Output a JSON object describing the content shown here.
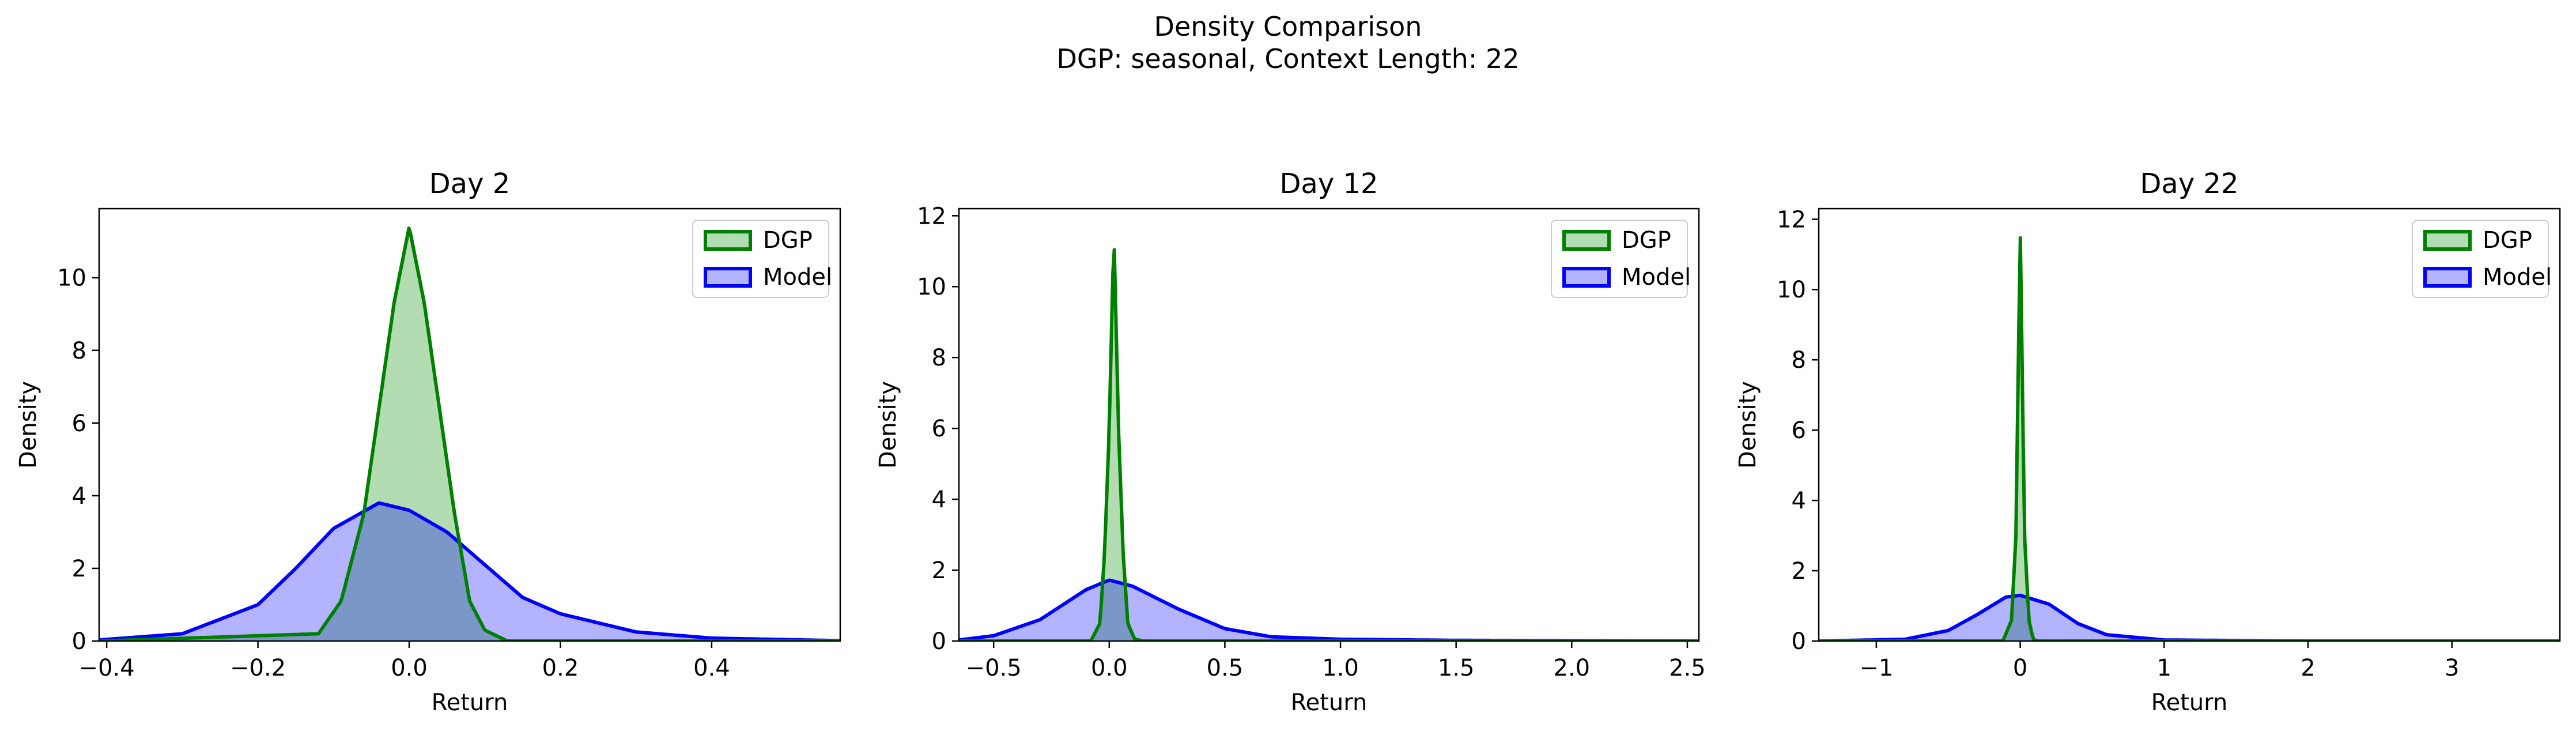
{
  "figure": {
    "title_line1": "Density Comparison",
    "title_line2": "DGP: seasonal, Context Length: 22"
  },
  "colors": {
    "dgp_line": "#008000",
    "dgp_fill": "#b3dcb3",
    "model_line": "#0000ff",
    "model_fill": "#b3b3ff",
    "overlap_fill": "#7b97c8"
  },
  "chart_data": [
    {
      "type": "area",
      "title": "Day 2",
      "xlabel": "Return",
      "ylabel": "Density",
      "xlim": [
        -0.41,
        0.57
      ],
      "ylim": [
        0,
        11.9
      ],
      "xticks": [
        -0.4,
        -0.2,
        0.0,
        0.2,
        0.4
      ],
      "xtick_labels": [
        "−0.4",
        "−0.2",
        "0.0",
        "0.2",
        "0.4"
      ],
      "yticks": [
        0,
        2,
        4,
        6,
        8,
        10
      ],
      "ytick_labels": [
        "0",
        "2",
        "4",
        "6",
        "8",
        "10"
      ],
      "legend": "top-right",
      "series": [
        {
          "name": "DGP",
          "x": [
            -0.41,
            -0.12,
            -0.09,
            -0.06,
            -0.04,
            -0.02,
            0.0,
            0.02,
            0.04,
            0.06,
            0.08,
            0.1,
            0.13,
            0.57
          ],
          "y": [
            0.0,
            0.2,
            1.1,
            3.5,
            6.4,
            9.3,
            11.4,
            9.3,
            6.4,
            3.5,
            1.1,
            0.3,
            0.0,
            0.0
          ]
        },
        {
          "name": "Model",
          "x": [
            -0.41,
            -0.3,
            -0.2,
            -0.15,
            -0.1,
            -0.04,
            0.0,
            0.05,
            0.1,
            0.15,
            0.2,
            0.3,
            0.4,
            0.57
          ],
          "y": [
            0.03,
            0.2,
            1.0,
            2.0,
            3.1,
            3.8,
            3.6,
            3.0,
            2.1,
            1.2,
            0.75,
            0.25,
            0.08,
            0.01
          ]
        }
      ]
    },
    {
      "type": "area",
      "title": "Day 12",
      "xlabel": "Return",
      "ylabel": "Density",
      "xlim": [
        -0.65,
        2.55
      ],
      "ylim": [
        0,
        12.2
      ],
      "xticks": [
        -0.5,
        0.0,
        0.5,
        1.0,
        1.5,
        2.0,
        2.5
      ],
      "xtick_labels": [
        "−0.5",
        "0.0",
        "0.5",
        "1.0",
        "1.5",
        "2.0",
        "2.5"
      ],
      "yticks": [
        0,
        2,
        4,
        6,
        8,
        10,
        12
      ],
      "ytick_labels": [
        "0",
        "2",
        "4",
        "6",
        "8",
        "10",
        "12"
      ],
      "legend": "top-right",
      "series": [
        {
          "name": "DGP",
          "x": [
            -0.65,
            -0.08,
            -0.04,
            -0.02,
            0.0,
            0.02,
            0.04,
            0.06,
            0.08,
            0.11,
            0.15,
            2.55
          ],
          "y": [
            0.0,
            0.0,
            0.5,
            2.5,
            6.0,
            11.6,
            6.0,
            2.5,
            0.5,
            0.05,
            0.0,
            0.0
          ]
        },
        {
          "name": "Model",
          "x": [
            -0.65,
            -0.5,
            -0.3,
            -0.1,
            0.0,
            0.1,
            0.3,
            0.5,
            0.7,
            1.0,
            1.5,
            2.0,
            2.55
          ],
          "y": [
            0.03,
            0.15,
            0.6,
            1.45,
            1.72,
            1.55,
            0.9,
            0.35,
            0.12,
            0.05,
            0.02,
            0.01,
            0.0
          ]
        }
      ]
    },
    {
      "type": "area",
      "title": "Day 22",
      "xlabel": "Return",
      "ylabel": "Density",
      "xlim": [
        -1.4,
        3.75
      ],
      "ylim": [
        0,
        12.3
      ],
      "xticks": [
        -1,
        0,
        1,
        2,
        3
      ],
      "xtick_labels": [
        "−1",
        "0",
        "1",
        "2",
        "3"
      ],
      "yticks": [
        0,
        2,
        4,
        6,
        8,
        10,
        12
      ],
      "ytick_labels": [
        "0",
        "2",
        "4",
        "6",
        "8",
        "10",
        "12"
      ],
      "legend": "top-right",
      "series": [
        {
          "name": "DGP",
          "x": [
            -1.4,
            -0.12,
            -0.06,
            -0.03,
            0.0,
            0.03,
            0.06,
            0.09,
            0.12,
            3.75
          ],
          "y": [
            0.0,
            0.0,
            0.6,
            3.0,
            11.7,
            3.0,
            0.6,
            0.05,
            0.0,
            0.0
          ]
        },
        {
          "name": "Model",
          "x": [
            -1.4,
            -0.8,
            -0.5,
            -0.3,
            -0.1,
            0.0,
            0.2,
            0.4,
            0.6,
            1.0,
            2.0,
            3.75
          ],
          "y": [
            0.0,
            0.05,
            0.3,
            0.75,
            1.25,
            1.3,
            1.05,
            0.5,
            0.18,
            0.03,
            0.0,
            0.0
          ]
        }
      ]
    }
  ]
}
